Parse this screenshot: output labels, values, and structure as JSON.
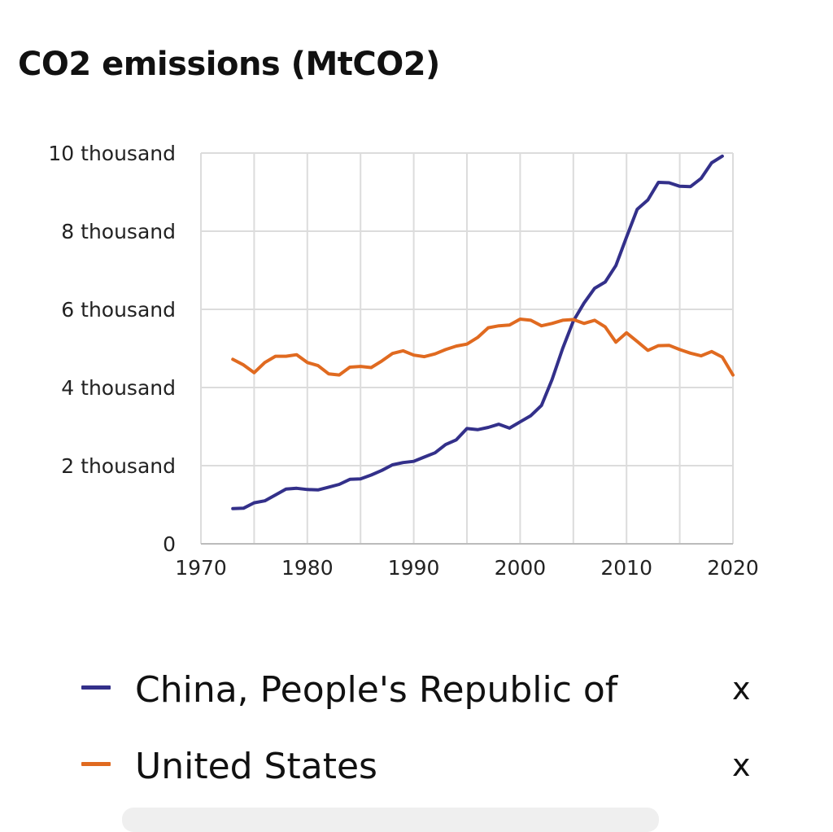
{
  "chart_data": {
    "type": "line",
    "title": "CO2 emissions (MtCO2)",
    "xlabel": "",
    "ylabel": "",
    "xlim": [
      1970,
      2020
    ],
    "ylim": [
      0,
      10000
    ],
    "x_ticks": [
      1970,
      1980,
      1990,
      2000,
      2010,
      2020
    ],
    "y_ticks": [
      0,
      2000,
      4000,
      6000,
      8000,
      10000
    ],
    "y_tick_labels": [
      "0",
      "2 thousand",
      "4 thousand",
      "6 thousand",
      "8 thousand",
      "10 thousand"
    ],
    "grid": true,
    "legend_position": "bottom",
    "series": [
      {
        "name": "China, People's Republic of",
        "color": "#33308a",
        "x": [
          1973,
          1974,
          1975,
          1976,
          1977,
          1978,
          1979,
          1980,
          1981,
          1982,
          1983,
          1984,
          1985,
          1986,
          1987,
          1988,
          1989,
          1990,
          1991,
          1992,
          1993,
          1994,
          1995,
          1996,
          1997,
          1998,
          1999,
          2000,
          2001,
          2002,
          2003,
          2004,
          2005,
          2006,
          2007,
          2008,
          2009,
          2010,
          2011,
          2012,
          2013,
          2014,
          2015,
          2016,
          2017,
          2018,
          2019
        ],
        "values": [
          900,
          910,
          1050,
          1100,
          1250,
          1400,
          1420,
          1390,
          1380,
          1450,
          1520,
          1650,
          1660,
          1760,
          1880,
          2020,
          2080,
          2110,
          2220,
          2330,
          2540,
          2660,
          2950,
          2920,
          2980,
          3060,
          2960,
          3120,
          3280,
          3540,
          4200,
          5000,
          5700,
          6160,
          6540,
          6700,
          7120,
          7850,
          8560,
          8800,
          9250,
          9240,
          9150,
          9140,
          9350,
          9750,
          9920
        ]
      },
      {
        "name": "United States",
        "color": "#e06a20",
        "x": [
          1973,
          1974,
          1975,
          1976,
          1977,
          1978,
          1979,
          1980,
          1981,
          1982,
          1983,
          1984,
          1985,
          1986,
          1987,
          1988,
          1989,
          1990,
          1991,
          1992,
          1993,
          1994,
          1995,
          1996,
          1997,
          1998,
          1999,
          2000,
          2001,
          2002,
          2003,
          2004,
          2005,
          2006,
          2007,
          2008,
          2009,
          2010,
          2011,
          2012,
          2013,
          2014,
          2015,
          2016,
          2017,
          2018,
          2019,
          2020
        ],
        "values": [
          4720,
          4580,
          4380,
          4640,
          4800,
          4800,
          4840,
          4640,
          4560,
          4350,
          4320,
          4520,
          4540,
          4510,
          4680,
          4870,
          4940,
          4830,
          4790,
          4860,
          4970,
          5060,
          5110,
          5280,
          5530,
          5580,
          5600,
          5750,
          5720,
          5580,
          5640,
          5720,
          5740,
          5640,
          5720,
          5550,
          5160,
          5400,
          5180,
          4950,
          5070,
          5080,
          4970,
          4880,
          4810,
          4920,
          4780,
          4320
        ]
      }
    ]
  },
  "legend": {
    "items": [
      {
        "label": "China, People's Republic of",
        "color": "#33308a",
        "remove_label": "x"
      },
      {
        "label": "United States",
        "color": "#e06a20",
        "remove_label": "x"
      }
    ]
  }
}
